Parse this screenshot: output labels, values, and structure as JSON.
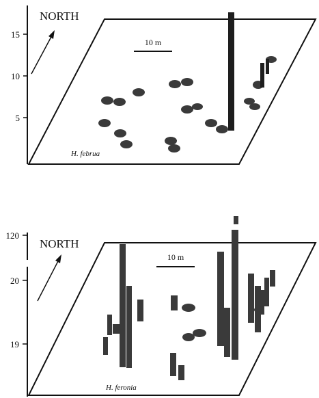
{
  "colors": {
    "ink": "#111111",
    "mark": "#3a3a3a",
    "mark_dark": "#1e1e1e"
  },
  "panels": [
    {
      "id": "top",
      "species": "H. februa",
      "north_label": "NORTH",
      "scale_label": "10 m",
      "axis_ticks": [
        "15",
        "10",
        "5"
      ]
    },
    {
      "id": "bottom",
      "species": "H. feronia",
      "north_label": "NORTH",
      "scale_label": "10 m",
      "axis_ticks": [
        "120",
        "20",
        "19"
      ]
    }
  ]
}
